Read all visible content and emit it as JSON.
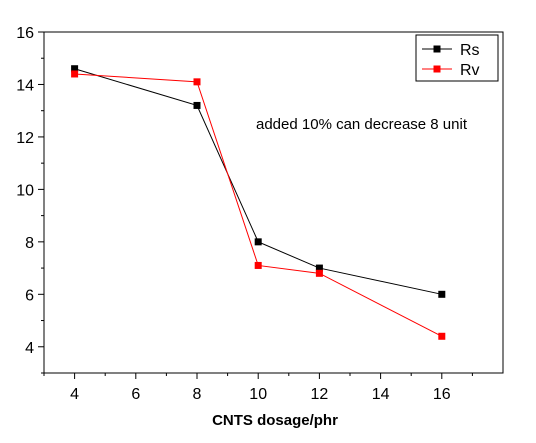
{
  "chart_data": {
    "type": "line",
    "title": "",
    "xlabel": "CNTS dosage/phr",
    "ylabel": "",
    "xlim": [
      3,
      18
    ],
    "ylim": [
      3,
      16
    ],
    "xticks": [
      4,
      6,
      8,
      10,
      12,
      14,
      16
    ],
    "yticks": [
      4,
      6,
      8,
      10,
      12,
      14,
      16
    ],
    "grid": false,
    "legend_position": "top-right",
    "series": [
      {
        "name": "Rs",
        "color": "#000000",
        "marker": "square",
        "x": [
          4,
          8,
          10,
          12,
          16
        ],
        "y": [
          14.6,
          13.2,
          8.0,
          7.0,
          6.0
        ]
      },
      {
        "name": "Rv",
        "color": "#ff0000",
        "marker": "square",
        "x": [
          4,
          8,
          10,
          12,
          16
        ],
        "y": [
          14.4,
          14.1,
          7.1,
          6.8,
          4.4
        ]
      }
    ],
    "annotations": [
      {
        "text": "added 10% can decrease 8 unit"
      }
    ]
  }
}
